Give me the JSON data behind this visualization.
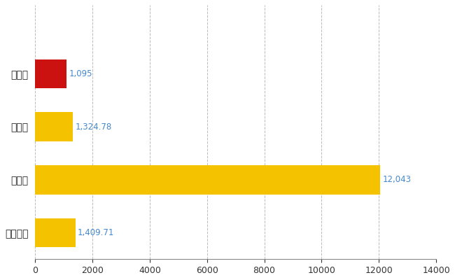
{
  "categories": [
    "中央区",
    "県平均",
    "県最大",
    "全国平均"
  ],
  "values": [
    1095,
    1324.78,
    12043,
    1409.71
  ],
  "bar_colors": [
    "#CC1111",
    "#F5C200",
    "#F5C200",
    "#F5C200"
  ],
  "labels": [
    "1,095",
    "1,324.78",
    "12,043",
    "1,409.71"
  ],
  "xlim": [
    0,
    14000
  ],
  "xticks": [
    0,
    2000,
    4000,
    6000,
    8000,
    10000,
    12000,
    14000
  ],
  "background_color": "#ffffff",
  "grid_color": "#bbbbbb",
  "label_color": "#4488cc",
  "bar_height": 0.55,
  "figsize": [
    6.5,
    4.0
  ],
  "dpi": 100,
  "y_order": [
    "全国平均",
    "県最大",
    "県平均",
    "中央区"
  ]
}
